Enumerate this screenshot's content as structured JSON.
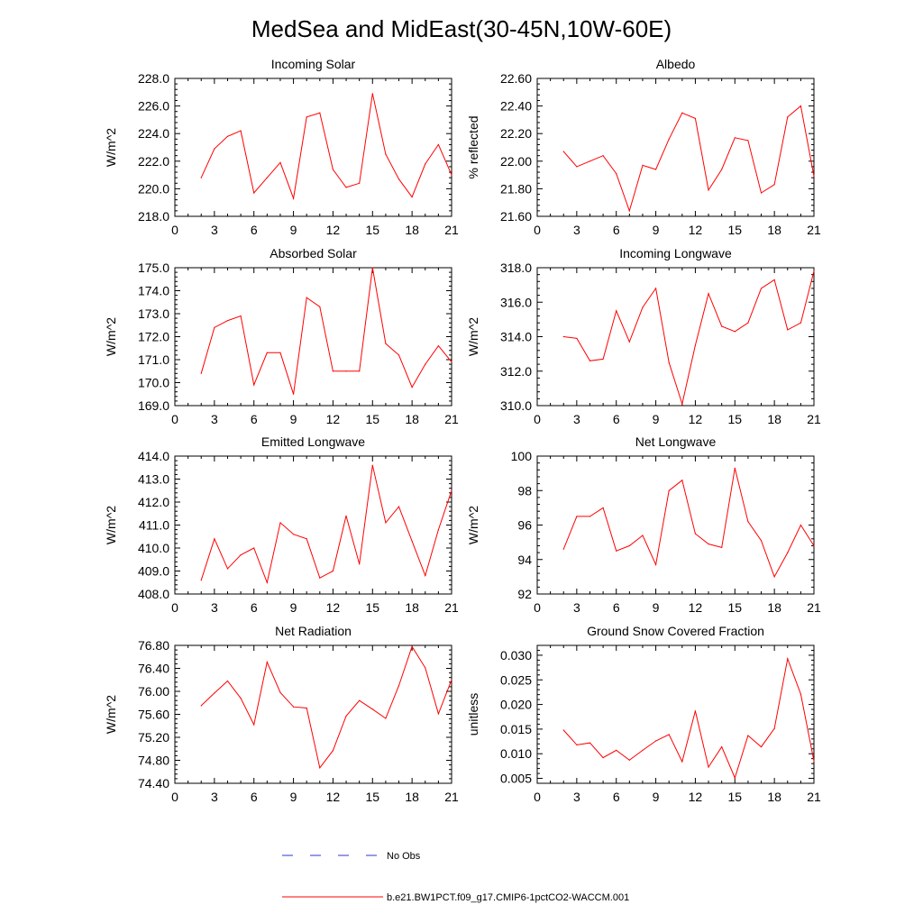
{
  "figure": {
    "title": "MedSea and MidEast(30-45N,10W-60E)",
    "line_color": "#ff0000",
    "no_obs_color": "#3333cc"
  },
  "legend": {
    "entries": [
      {
        "label": "No Obs",
        "style": "dashed",
        "color": "#3333cc"
      },
      {
        "label": "b.e21.BW1PCT.f09_g17.CMIP6-1pctCO2-WACCM.001",
        "style": "solid",
        "color": "#ff0000"
      }
    ]
  },
  "chart_data": [
    {
      "type": "line",
      "title": "Incoming Solar",
      "ylabel": "W/m^2",
      "xlim": [
        0,
        21
      ],
      "ylim": [
        218,
        228
      ],
      "xticks": [
        0,
        3,
        6,
        9,
        12,
        15,
        18,
        21
      ],
      "yticks": [
        "218.0",
        "220.0",
        "222.0",
        "224.0",
        "226.0",
        "228.0"
      ],
      "x": [
        2,
        3,
        4,
        5,
        6,
        7,
        8,
        9,
        10,
        11,
        12,
        13,
        14,
        15,
        16,
        17,
        18,
        19,
        20,
        21
      ],
      "series": [
        {
          "values": [
            220.8,
            222.9,
            223.8,
            224.2,
            219.7,
            220.8,
            221.9,
            219.3,
            225.2,
            225.5,
            221.4,
            220.1,
            220.4,
            226.9,
            222.5,
            220.7,
            219.4,
            221.8,
            223.2,
            221.0
          ]
        }
      ]
    },
    {
      "type": "line",
      "title": "Albedo",
      "ylabel": "% reflected",
      "xlim": [
        0,
        21
      ],
      "ylim": [
        21.6,
        22.6
      ],
      "xticks": [
        0,
        3,
        6,
        9,
        12,
        15,
        18,
        21
      ],
      "yticks": [
        "21.60",
        "21.80",
        "22.00",
        "22.20",
        "22.40",
        "22.60"
      ],
      "x": [
        2,
        3,
        4,
        5,
        6,
        7,
        8,
        9,
        10,
        11,
        12,
        13,
        14,
        15,
        16,
        17,
        18,
        19,
        20,
        21
      ],
      "series": [
        {
          "values": [
            22.07,
            21.96,
            22.0,
            22.04,
            21.91,
            21.64,
            21.97,
            21.94,
            22.16,
            22.35,
            22.31,
            21.79,
            21.94,
            22.17,
            22.15,
            21.77,
            21.83,
            22.32,
            22.4,
            21.89
          ]
        }
      ]
    },
    {
      "type": "line",
      "title": "Absorbed Solar",
      "ylabel": "W/m^2",
      "xlim": [
        0,
        21
      ],
      "ylim": [
        169,
        175
      ],
      "xticks": [
        0,
        3,
        6,
        9,
        12,
        15,
        18,
        21
      ],
      "yticks": [
        "169.0",
        "170.0",
        "171.0",
        "172.0",
        "173.0",
        "174.0",
        "175.0"
      ],
      "x": [
        2,
        3,
        4,
        5,
        6,
        7,
        8,
        9,
        10,
        11,
        12,
        13,
        14,
        15,
        16,
        17,
        18,
        19,
        20,
        21
      ],
      "series": [
        {
          "values": [
            170.4,
            172.4,
            172.7,
            172.9,
            169.9,
            171.3,
            171.3,
            169.5,
            173.7,
            173.3,
            170.5,
            170.5,
            170.5,
            175.0,
            171.7,
            171.2,
            169.8,
            170.8,
            171.6,
            170.9
          ]
        }
      ]
    },
    {
      "type": "line",
      "title": "Incoming Longwave",
      "ylabel": "W/m^2",
      "xlim": [
        0,
        21
      ],
      "ylim": [
        310,
        318
      ],
      "xticks": [
        0,
        3,
        6,
        9,
        12,
        15,
        18,
        21
      ],
      "yticks": [
        "310.0",
        "312.0",
        "314.0",
        "316.0",
        "318.0"
      ],
      "x": [
        2,
        3,
        4,
        5,
        6,
        7,
        8,
        9,
        10,
        11,
        12,
        13,
        14,
        15,
        16,
        17,
        18,
        19,
        20,
        21
      ],
      "series": [
        {
          "values": [
            314.0,
            313.9,
            312.6,
            312.7,
            315.5,
            313.7,
            315.7,
            316.8,
            312.5,
            310.1,
            313.5,
            316.5,
            314.6,
            314.3,
            314.8,
            316.8,
            317.3,
            314.4,
            314.8,
            317.8
          ]
        }
      ]
    },
    {
      "type": "line",
      "title": "Emitted Longwave",
      "ylabel": "W/m^2",
      "xlim": [
        0,
        21
      ],
      "ylim": [
        408,
        414
      ],
      "xticks": [
        0,
        3,
        6,
        9,
        12,
        15,
        18,
        21
      ],
      "yticks": [
        "408.0",
        "409.0",
        "410.0",
        "411.0",
        "412.0",
        "413.0",
        "414.0"
      ],
      "x": [
        2,
        3,
        4,
        5,
        6,
        7,
        8,
        9,
        10,
        11,
        12,
        13,
        14,
        15,
        16,
        17,
        18,
        19,
        20,
        21
      ],
      "series": [
        {
          "values": [
            408.6,
            410.4,
            409.1,
            409.7,
            410.0,
            408.5,
            411.1,
            410.6,
            410.4,
            408.7,
            409.0,
            411.4,
            409.3,
            413.6,
            411.1,
            411.8,
            410.3,
            408.8,
            410.8,
            412.5
          ]
        }
      ]
    },
    {
      "type": "line",
      "title": "Net Longwave",
      "ylabel": "W/m^2",
      "xlim": [
        0,
        21
      ],
      "ylim": [
        92,
        100
      ],
      "xticks": [
        0,
        3,
        6,
        9,
        12,
        15,
        18,
        21
      ],
      "yticks": [
        "92",
        "94",
        "96",
        "98",
        "100"
      ],
      "x": [
        2,
        3,
        4,
        5,
        6,
        7,
        8,
        9,
        10,
        11,
        12,
        13,
        14,
        15,
        16,
        17,
        18,
        19,
        20,
        21
      ],
      "series": [
        {
          "values": [
            94.6,
            96.5,
            96.5,
            97.0,
            94.5,
            94.8,
            95.4,
            93.7,
            98.0,
            98.6,
            95.5,
            94.9,
            94.7,
            99.3,
            96.2,
            95.1,
            93.0,
            94.4,
            96.0,
            94.8
          ]
        }
      ]
    },
    {
      "type": "line",
      "title": "Net Radiation",
      "ylabel": "W/m^2",
      "xlim": [
        0,
        21
      ],
      "ylim": [
        74.4,
        76.8
      ],
      "xticks": [
        0,
        3,
        6,
        9,
        12,
        15,
        18,
        21
      ],
      "yticks": [
        "74.40",
        "74.80",
        "75.20",
        "75.60",
        "76.00",
        "76.40",
        "76.80"
      ],
      "x": [
        2,
        3,
        4,
        5,
        6,
        7,
        8,
        9,
        10,
        11,
        12,
        13,
        14,
        15,
        16,
        17,
        18,
        19,
        20,
        21
      ],
      "series": [
        {
          "values": [
            75.75,
            75.97,
            76.18,
            75.88,
            75.42,
            76.51,
            75.98,
            75.73,
            75.71,
            74.67,
            74.97,
            75.57,
            75.84,
            75.69,
            75.53,
            76.1,
            76.78,
            76.41,
            75.61,
            76.2
          ]
        }
      ]
    },
    {
      "type": "line",
      "title": "Ground Snow Covered Fraction",
      "ylabel": "unitless",
      "xlim": [
        0,
        21
      ],
      "ylim": [
        0.004,
        0.032
      ],
      "xticks": [
        0,
        3,
        6,
        9,
        12,
        15,
        18,
        21
      ],
      "yticks": [
        "0.005",
        "0.010",
        "0.015",
        "0.020",
        "0.025",
        "0.030"
      ],
      "x": [
        2,
        3,
        4,
        5,
        6,
        7,
        8,
        9,
        10,
        11,
        12,
        13,
        14,
        15,
        16,
        17,
        18,
        19,
        20,
        21
      ],
      "series": [
        {
          "values": [
            0.0148,
            0.0118,
            0.0122,
            0.0092,
            0.0107,
            0.0087,
            0.0107,
            0.0126,
            0.0139,
            0.0084,
            0.0187,
            0.0073,
            0.0114,
            0.0051,
            0.0137,
            0.0114,
            0.0151,
            0.0293,
            0.0221,
            0.0085
          ]
        }
      ]
    }
  ]
}
